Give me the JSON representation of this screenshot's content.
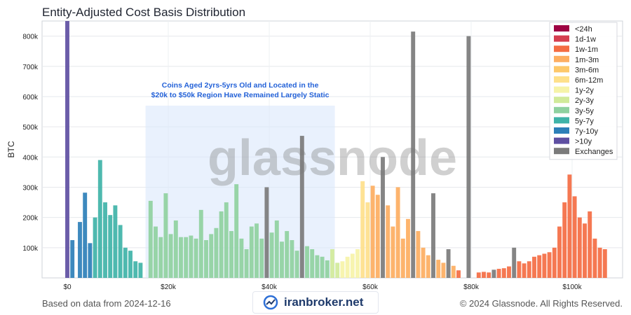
{
  "header": {
    "title": "Entity-Adjusted Cost Basis Distribution"
  },
  "footer": {
    "source": "Based on data from 2024-12-16",
    "copyright": "© 2024 Glassnode. All Rights Reserved.",
    "brand": "iranbroker.net"
  },
  "chart_data": {
    "type": "bar",
    "title": "Entity-Adjusted Cost Basis Distribution",
    "xlabel": "",
    "ylabel": "BTC",
    "xlim": [
      -5000,
      110000
    ],
    "ylim": [
      0,
      850000
    ],
    "x_ticks": [
      0,
      20000,
      40000,
      60000,
      80000,
      100000
    ],
    "x_tick_labels": [
      "$0",
      "$20k",
      "$40k",
      "$60k",
      "$80k",
      "$100k"
    ],
    "y_ticks": [
      100000,
      200000,
      300000,
      400000,
      500000,
      600000,
      700000,
      800000
    ],
    "y_tick_labels": [
      "100k",
      "200k",
      "300k",
      "400k",
      "500k",
      "600k",
      "700k",
      "800k"
    ],
    "grid": true,
    "legend_position": "top-right",
    "watermark": "glassnode",
    "annotation": {
      "text_line1": "Coins Aged 2yrs-5yrs Old and Located in the",
      "text_line2": "$20k to $50k Region Have Remained Largely Static",
      "x_range": [
        15500,
        53000
      ],
      "y_top": 570000
    },
    "colors": {
      "<24h": "#9e0142",
      "1d-1w": "#d53e4f",
      "1w-1m": "#f46d43",
      "1m-3m": "#fdae61",
      "3m-6m": "#fdc86a",
      "6m-12m": "#fee08b",
      "1y-2y": "#f6f3a8",
      "2y-3y": "#d1ea9a",
      "3y-5y": "#8fd1a0",
      "5y-7y": "#3fb3a8",
      "7y-10y": "#2d7fb8",
      ">10y": "#5e4fa2",
      "Exchanges": "#7b7b7b"
    },
    "series": [
      {
        "name": "<24h"
      },
      {
        "name": "1d-1w"
      },
      {
        "name": "1w-1m"
      },
      {
        "name": "1m-3m"
      },
      {
        "name": "3m-6m"
      },
      {
        "name": "6m-12m"
      },
      {
        "name": "1y-2y"
      },
      {
        "name": "2y-3y"
      },
      {
        "name": "3y-5y"
      },
      {
        "name": "5y-7y"
      },
      {
        "name": "7y-10y"
      },
      {
        "name": ">10y"
      },
      {
        "name": "Exchanges"
      }
    ],
    "bars": [
      {
        "x": 0,
        "total": 850000,
        "band": ">10y"
      },
      {
        "x": 1000,
        "total": 125000,
        "band": "7y-10y"
      },
      {
        "x": 2500,
        "total": 185000,
        "band": "7y-10y"
      },
      {
        "x": 3500,
        "total": 282000,
        "band": "7y-10y"
      },
      {
        "x": 4500,
        "total": 115000,
        "band": "7y-10y"
      },
      {
        "x": 5500,
        "total": 200000,
        "band": "5y-7y"
      },
      {
        "x": 6500,
        "total": 390000,
        "band": "5y-7y"
      },
      {
        "x": 7500,
        "total": 250000,
        "band": "5y-7y"
      },
      {
        "x": 8500,
        "total": 208000,
        "band": "5y-7y"
      },
      {
        "x": 9500,
        "total": 240000,
        "band": "5y-7y"
      },
      {
        "x": 10500,
        "total": 175000,
        "band": "5y-7y"
      },
      {
        "x": 11500,
        "total": 100000,
        "band": "5y-7y"
      },
      {
        "x": 12500,
        "total": 90000,
        "band": "5y-7y"
      },
      {
        "x": 13500,
        "total": 55000,
        "band": "5y-7y"
      },
      {
        "x": 14500,
        "total": 50000,
        "band": "5y-7y"
      },
      {
        "x": 16500,
        "total": 255000,
        "band": "3y-5y"
      },
      {
        "x": 17500,
        "total": 170000,
        "band": "3y-5y"
      },
      {
        "x": 18500,
        "total": 135000,
        "band": "3y-5y"
      },
      {
        "x": 19500,
        "total": 280000,
        "band": "3y-5y"
      },
      {
        "x": 20500,
        "total": 145000,
        "band": "3y-5y"
      },
      {
        "x": 21500,
        "total": 190000,
        "band": "3y-5y"
      },
      {
        "x": 22500,
        "total": 135000,
        "band": "3y-5y"
      },
      {
        "x": 23500,
        "total": 135000,
        "band": "3y-5y"
      },
      {
        "x": 24500,
        "total": 140000,
        "band": "3y-5y"
      },
      {
        "x": 25500,
        "total": 130000,
        "band": "3y-5y"
      },
      {
        "x": 26500,
        "total": 225000,
        "band": "3y-5y"
      },
      {
        "x": 27500,
        "total": 125000,
        "band": "3y-5y"
      },
      {
        "x": 28500,
        "total": 145000,
        "band": "3y-5y"
      },
      {
        "x": 29500,
        "total": 165000,
        "band": "3y-5y"
      },
      {
        "x": 30500,
        "total": 220000,
        "band": "3y-5y"
      },
      {
        "x": 31500,
        "total": 250000,
        "band": "3y-5y"
      },
      {
        "x": 32500,
        "total": 155000,
        "band": "3y-5y"
      },
      {
        "x": 33500,
        "total": 310000,
        "band": "3y-5y"
      },
      {
        "x": 34500,
        "total": 130000,
        "band": "3y-5y"
      },
      {
        "x": 35500,
        "total": 95000,
        "band": "3y-5y"
      },
      {
        "x": 36500,
        "total": 170000,
        "band": "3y-5y"
      },
      {
        "x": 37500,
        "total": 180000,
        "band": "3y-5y"
      },
      {
        "x": 38500,
        "total": 130000,
        "band": "3y-5y"
      },
      {
        "x": 39500,
        "total": 300000,
        "band": "Exchanges"
      },
      {
        "x": 40500,
        "total": 150000,
        "band": "3y-5y"
      },
      {
        "x": 41500,
        "total": 190000,
        "band": "3y-5y"
      },
      {
        "x": 42500,
        "total": 120000,
        "band": "3y-5y"
      },
      {
        "x": 43500,
        "total": 155000,
        "band": "3y-5y"
      },
      {
        "x": 44500,
        "total": 125000,
        "band": "3y-5y"
      },
      {
        "x": 45500,
        "total": 90000,
        "band": "3y-5y"
      },
      {
        "x": 46500,
        "total": 470000,
        "band": "Exchanges"
      },
      {
        "x": 47500,
        "total": 105000,
        "band": "3y-5y"
      },
      {
        "x": 48500,
        "total": 95000,
        "band": "3y-5y"
      },
      {
        "x": 49500,
        "total": 75000,
        "band": "3y-5y"
      },
      {
        "x": 50500,
        "total": 70000,
        "band": "3y-5y"
      },
      {
        "x": 51500,
        "total": 58000,
        "band": "3y-5y"
      },
      {
        "x": 52500,
        "total": 95000,
        "band": "2y-3y"
      },
      {
        "x": 53500,
        "total": 50000,
        "band": "2y-3y"
      },
      {
        "x": 54500,
        "total": 55000,
        "band": "1y-2y"
      },
      {
        "x": 55500,
        "total": 70000,
        "band": "1y-2y"
      },
      {
        "x": 56500,
        "total": 80000,
        "band": "1y-2y"
      },
      {
        "x": 57500,
        "total": 95000,
        "band": "1y-2y"
      },
      {
        "x": 58500,
        "total": 320000,
        "band": "6m-12m"
      },
      {
        "x": 59500,
        "total": 250000,
        "band": "6m-12m"
      },
      {
        "x": 60500,
        "total": 305000,
        "band": "1m-3m"
      },
      {
        "x": 61500,
        "total": 275000,
        "band": "1m-3m"
      },
      {
        "x": 62500,
        "total": 400000,
        "band": "Exchanges"
      },
      {
        "x": 63500,
        "total": 240000,
        "band": "1m-3m"
      },
      {
        "x": 64500,
        "total": 170000,
        "band": "1m-3m"
      },
      {
        "x": 65500,
        "total": 300000,
        "band": "1m-3m"
      },
      {
        "x": 66500,
        "total": 130000,
        "band": "1m-3m"
      },
      {
        "x": 67500,
        "total": 195000,
        "band": "1m-3m"
      },
      {
        "x": 68500,
        "total": 815000,
        "band": "Exchanges"
      },
      {
        "x": 69500,
        "total": 155000,
        "band": "1m-3m"
      },
      {
        "x": 70500,
        "total": 100000,
        "band": "1m-3m"
      },
      {
        "x": 71500,
        "total": 75000,
        "band": "1m-3m"
      },
      {
        "x": 72500,
        "total": 280000,
        "band": "Exchanges"
      },
      {
        "x": 73500,
        "total": 60000,
        "band": "1m-3m"
      },
      {
        "x": 74500,
        "total": 50000,
        "band": "1m-3m"
      },
      {
        "x": 75500,
        "total": 95000,
        "band": "Exchanges"
      },
      {
        "x": 76500,
        "total": 40000,
        "band": "1m-3m"
      },
      {
        "x": 77500,
        "total": 25000,
        "band": "1w-1m"
      },
      {
        "x": 79500,
        "total": 800000,
        "band": "Exchanges"
      },
      {
        "x": 81500,
        "total": 18000,
        "band": "1w-1m"
      },
      {
        "x": 82500,
        "total": 20000,
        "band": "1w-1m"
      },
      {
        "x": 83500,
        "total": 18000,
        "band": "1w-1m"
      },
      {
        "x": 84500,
        "total": 27000,
        "band": "Exchanges"
      },
      {
        "x": 85500,
        "total": 30000,
        "band": "1w-1m"
      },
      {
        "x": 86500,
        "total": 32000,
        "band": "1w-1m"
      },
      {
        "x": 87500,
        "total": 38000,
        "band": "1w-1m"
      },
      {
        "x": 88500,
        "total": 100000,
        "band": "Exchanges"
      },
      {
        "x": 89500,
        "total": 55000,
        "band": "1w-1m"
      },
      {
        "x": 90500,
        "total": 48000,
        "band": "1w-1m"
      },
      {
        "x": 91500,
        "total": 55000,
        "band": "1w-1m"
      },
      {
        "x": 92500,
        "total": 70000,
        "band": "1w-1m"
      },
      {
        "x": 93500,
        "total": 75000,
        "band": "1w-1m"
      },
      {
        "x": 94500,
        "total": 80000,
        "band": "1w-1m"
      },
      {
        "x": 95500,
        "total": 85000,
        "band": "1w-1m"
      },
      {
        "x": 96500,
        "total": 100000,
        "band": "1w-1m"
      },
      {
        "x": 97500,
        "total": 170000,
        "band": "1w-1m"
      },
      {
        "x": 98500,
        "total": 250000,
        "band": "1w-1m"
      },
      {
        "x": 99500,
        "total": 342000,
        "band": "1w-1m"
      },
      {
        "x": 100500,
        "total": 270000,
        "band": "1w-1m"
      },
      {
        "x": 101500,
        "total": 200000,
        "band": "1w-1m"
      },
      {
        "x": 102500,
        "total": 180000,
        "band": "1w-1m"
      },
      {
        "x": 103500,
        "total": 220000,
        "band": "1w-1m"
      },
      {
        "x": 104500,
        "total": 130000,
        "band": "1w-1m"
      },
      {
        "x": 105500,
        "total": 100000,
        "band": "1w-1m"
      },
      {
        "x": 106500,
        "total": 95000,
        "band": "1w-1m"
      }
    ]
  }
}
